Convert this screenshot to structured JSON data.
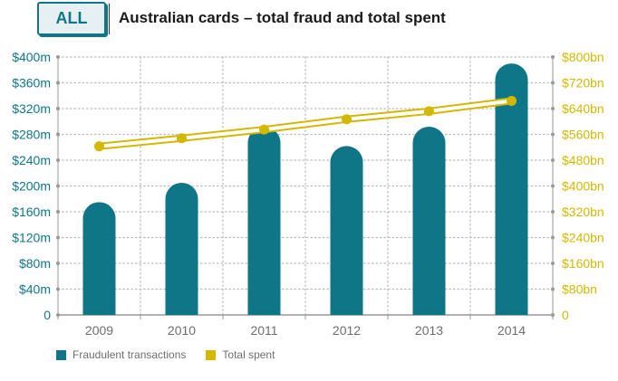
{
  "header": {
    "badge": "ALL",
    "title": "Australian cards – total fraud and total spent"
  },
  "colors": {
    "bar": "#0f7687",
    "line": "#d4b800",
    "axis_left": "#0f7687",
    "axis_right": "#d4b800",
    "grid": "#bbbbbb"
  },
  "chart_data": {
    "type": "bar",
    "categories": [
      "2009",
      "2010",
      "2011",
      "2012",
      "2013",
      "2014"
    ],
    "series": [
      {
        "name": "Fraudulent transactions",
        "type": "bar",
        "axis": "left",
        "values": [
          175,
          205,
          292,
          262,
          292,
          390
        ]
      },
      {
        "name": "Total spent",
        "type": "line",
        "axis": "right",
        "values": [
          523,
          548,
          575,
          607,
          632,
          664
        ]
      }
    ],
    "y_left": {
      "ylim": [
        0,
        400
      ],
      "ticks": [
        "0",
        "$40m",
        "$80m",
        "$120m",
        "$160m",
        "$200m",
        "$240m",
        "$280m",
        "$320m",
        "$360m",
        "$400m"
      ]
    },
    "y_right": {
      "ylim": [
        0,
        800
      ],
      "ticks": [
        "0",
        "$80bn",
        "$160bn",
        "$240bn",
        "$320bn",
        "$400bn",
        "$480bn",
        "$560bn",
        "$640bn",
        "$720bn",
        "$800bn"
      ]
    },
    "grid": true,
    "legend": "bottom-left"
  }
}
